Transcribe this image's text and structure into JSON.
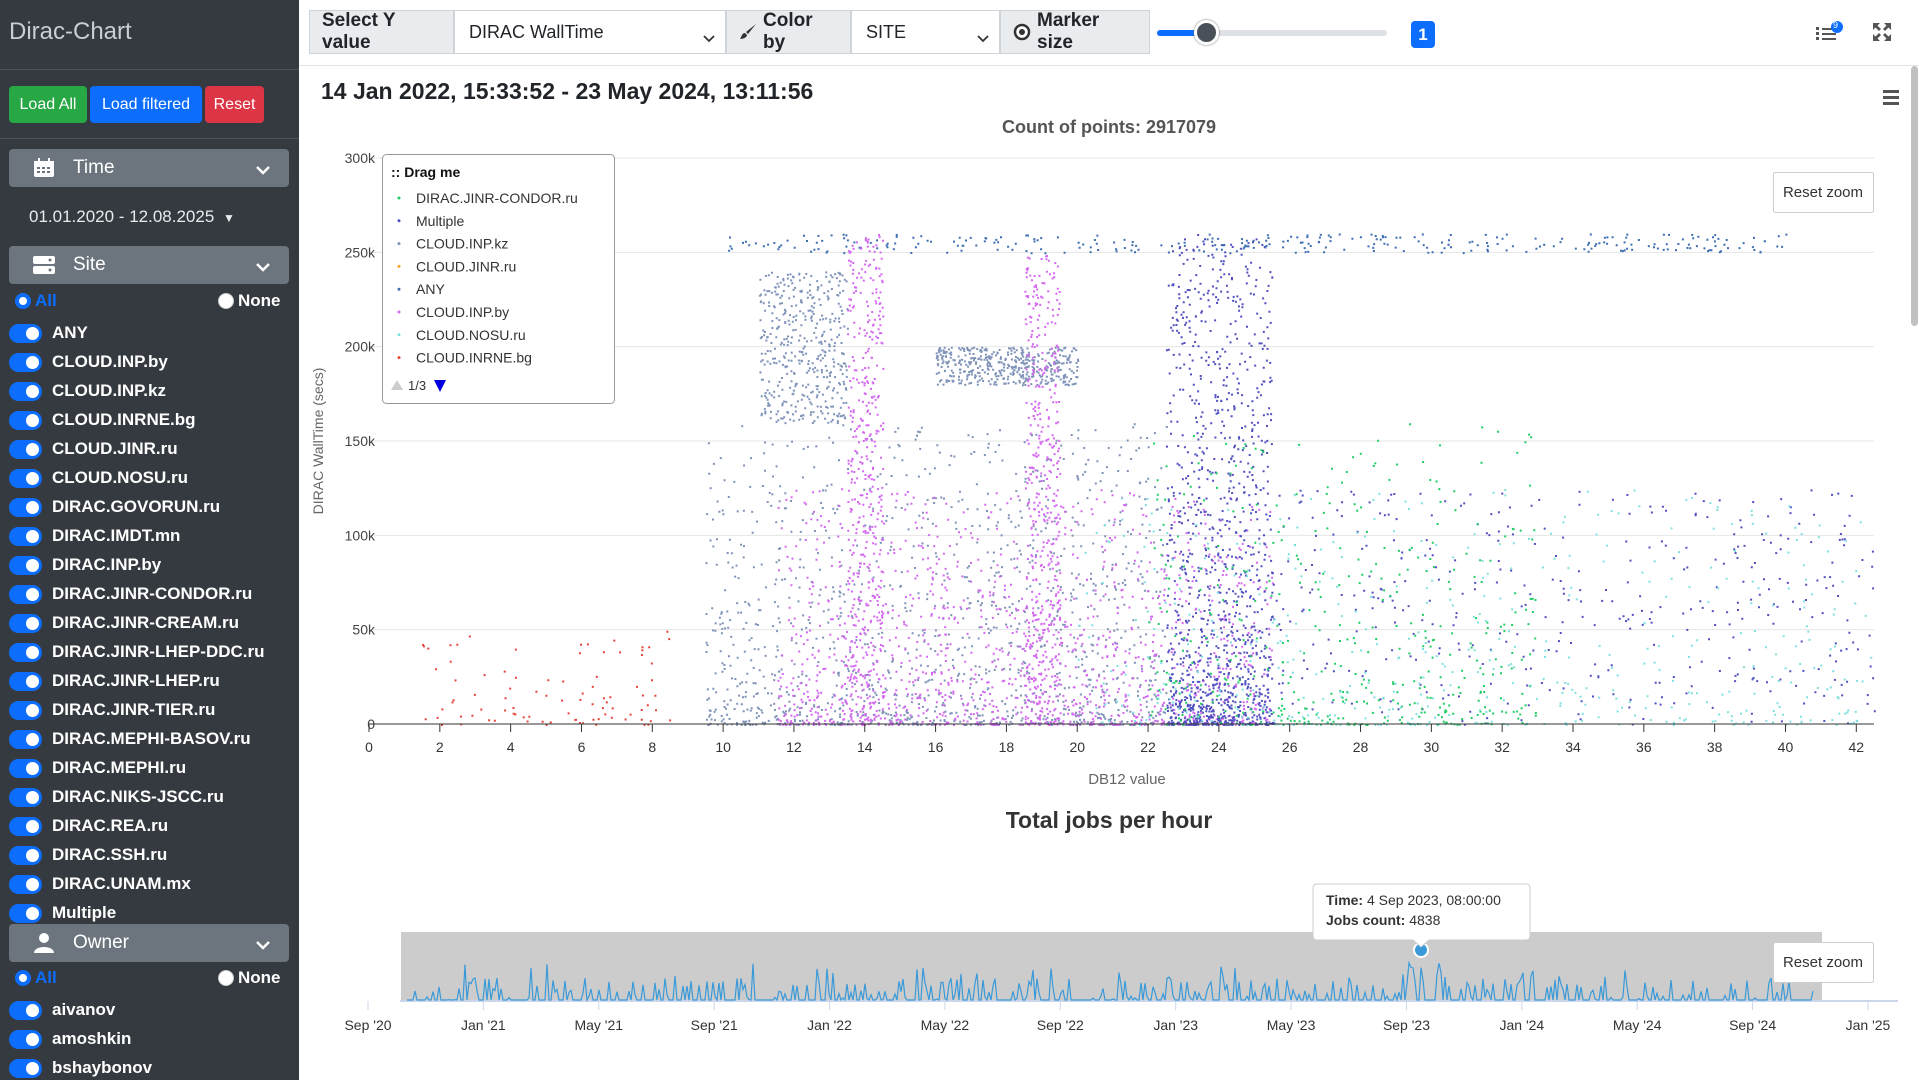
{
  "app": {
    "brand": "Dirac-Chart"
  },
  "sidebar": {
    "buttons": {
      "load_all": "Load All",
      "load_filtered": "Load filtered",
      "reset": "Reset"
    },
    "time": {
      "label": "Time",
      "range": "01.01.2020 - 12.08.2025"
    },
    "site": {
      "label": "Site",
      "all": "All",
      "none": "None",
      "items": [
        "ANY",
        "CLOUD.INP.by",
        "CLOUD.INP.kz",
        "CLOUD.INRNE.bg",
        "CLOUD.JINR.ru",
        "CLOUD.NOSU.ru",
        "DIRAC.GOVORUN.ru",
        "DIRAC.IMDT.mn",
        "DIRAC.INP.by",
        "DIRAC.JINR-CONDOR.ru",
        "DIRAC.JINR-CREAM.ru",
        "DIRAC.JINR-LHEP-DDC.ru",
        "DIRAC.JINR-LHEP.ru",
        "DIRAC.JINR-TIER.ru",
        "DIRAC.MEPHI-BASOV.ru",
        "DIRAC.MEPHI.ru",
        "DIRAC.NIKS-JSCC.ru",
        "DIRAC.REA.ru",
        "DIRAC.SSH.ru",
        "DIRAC.UNAM.mx",
        "Multiple"
      ]
    },
    "owner": {
      "label": "Owner",
      "all": "All",
      "none": "None",
      "items": [
        "aivanov",
        "amoshkin",
        "bshaybonov"
      ]
    }
  },
  "toolbar": {
    "select_y_label": "Select Y value",
    "y_value": "DIRAC WallTime",
    "color_by_label": "Color by",
    "color_value": "SITE",
    "marker_size_label": "Marker size",
    "marker_size_value": "1",
    "list_badge": "9"
  },
  "main": {
    "range_title": "14 Jan 2022, 15:33:52 - 23 May 2024, 13:11:56"
  },
  "colors": {
    "condor": "#22cc66",
    "multiple": "#5050c0",
    "inp_kz": "#7f92b8",
    "jinr": "#f5a623",
    "any": "#3e6fb3",
    "inp_by": "#d468f0",
    "nosu": "#7fe0e0",
    "inrne": "#e5443a",
    "navigator": "#3a9ad9"
  },
  "chart_data": [
    {
      "type": "scatter",
      "title": "Count of points: 2917079",
      "xlabel": "DB12 value",
      "ylabel": "DIRAC WallTime (secs)",
      "xlim": [
        0,
        42.5
      ],
      "ylim": [
        0,
        300000
      ],
      "x_ticks": [
        0,
        2,
        4,
        6,
        8,
        10,
        12,
        14,
        16,
        18,
        20,
        22,
        24,
        26,
        28,
        30,
        32,
        34,
        36,
        38,
        40,
        42
      ],
      "y_ticks": [
        0,
        50000,
        100000,
        150000,
        200000,
        250000,
        300000
      ],
      "y_tick_labels": [
        "0",
        "50k",
        "100k",
        "150k",
        "200k",
        "250k",
        "300k"
      ],
      "grid": true,
      "reset_zoom": "Reset zoom",
      "legend": {
        "title": ":: Drag me",
        "placement": "top-left",
        "pager": "1/3",
        "entries": [
          "DIRAC.JINR-CONDOR.ru",
          "Multiple",
          "CLOUD.INP.kz",
          "CLOUD.JINR.ru",
          "ANY",
          "CLOUD.INP.by",
          "CLOUD.NOSU.ru",
          "CLOUD.INRNE.bg"
        ]
      },
      "series": [
        {
          "name": "CLOUD.INRNE.bg",
          "color_key": "inrne",
          "regions": [
            {
              "x": [
                1.5,
                8.5
              ],
              "y": [
                0,
                50000
              ]
            }
          ]
        },
        {
          "name": "CLOUD.INP.kz",
          "color_key": "inp_kz",
          "regions": [
            {
              "x": [
                9.5,
                22.5
              ],
              "y": [
                0,
                160000
              ]
            },
            {
              "x": [
                11,
                13.5
              ],
              "y": [
                160000,
                240000
              ]
            },
            {
              "x": [
                16,
                20
              ],
              "y": [
                180000,
                200000
              ]
            }
          ]
        },
        {
          "name": "CLOUD.INP.by",
          "color_key": "inp_by",
          "regions": [
            {
              "x": [
                11.5,
                25.5
              ],
              "y": [
                0,
                125000
              ]
            },
            {
              "x": [
                13.5,
                14.5
              ],
              "y": [
                0,
                260000
              ]
            },
            {
              "x": [
                18.5,
                19.5
              ],
              "y": [
                0,
                250000
              ]
            }
          ]
        },
        {
          "name": "Multiple",
          "color_key": "multiple",
          "regions": [
            {
              "x": [
                22.5,
                25.5
              ],
              "y": [
                0,
                260000
              ]
            },
            {
              "x": [
                25.5,
                42.5
              ],
              "y": [
                0,
                125000
              ]
            }
          ]
        },
        {
          "name": "DIRAC.JINR-CONDOR.ru",
          "color_key": "condor",
          "regions": [
            {
              "x": [
                22,
                33
              ],
              "y": [
                0,
                160000
              ]
            }
          ]
        },
        {
          "name": "CLOUD.NOSU.ru",
          "color_key": "nosu",
          "regions": [
            {
              "x": [
                20,
                42.5
              ],
              "y": [
                0,
                125000
              ]
            }
          ]
        },
        {
          "name": "ANY",
          "color_key": "any",
          "regions": [
            {
              "x": [
                10,
                40
              ],
              "y": [
                250000,
                260000
              ]
            }
          ]
        }
      ]
    },
    {
      "type": "line",
      "title": "Total jobs per hour",
      "x_ticks": [
        "Sep '20",
        "Jan '21",
        "May '21",
        "Sep '21",
        "Jan '22",
        "May '22",
        "Sep '22",
        "Jan '23",
        "May '23",
        "Sep '23",
        "Jan '24",
        "May '24",
        "Sep '24",
        "Jan '25"
      ],
      "reset_zoom": "Reset zoom",
      "tooltip": {
        "time_label": "Time:",
        "time": "4 Sep 2023, 08:00:00",
        "count_label": "Jobs count:",
        "count": "4838"
      },
      "selection": [
        "14 Jan 2022, 15:33:52",
        "23 May 2024, 13:11:56"
      ]
    }
  ]
}
